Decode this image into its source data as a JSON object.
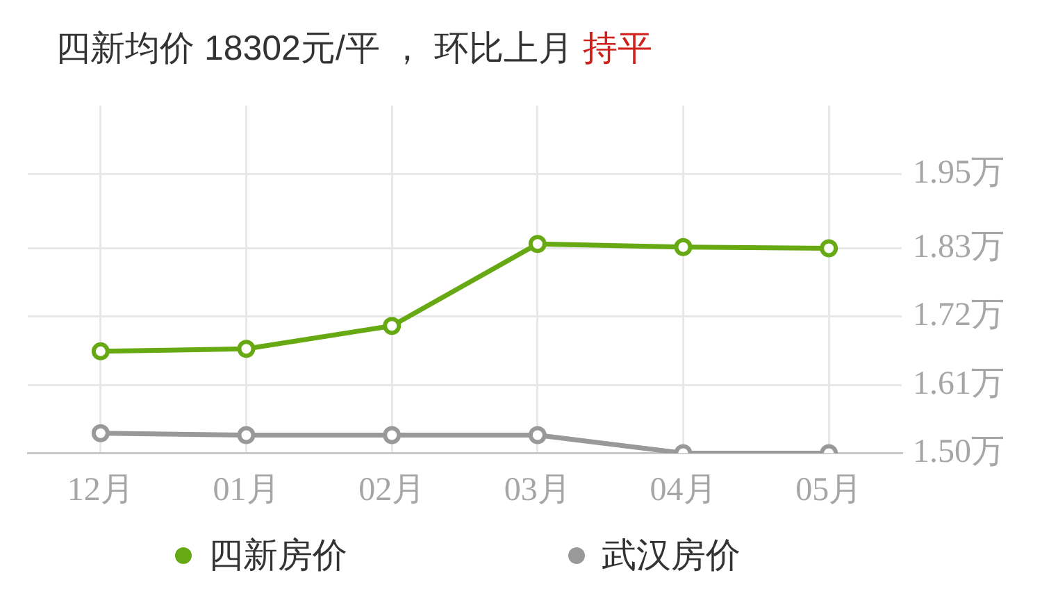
{
  "chart_data": {
    "type": "line",
    "title": "四新均价 18302元/平 ， 环比上月 持平",
    "categories": [
      "12月",
      "01月",
      "02月",
      "03月",
      "04月",
      "05月"
    ],
    "series": [
      {
        "name": "四新房价",
        "color": "#66a912",
        "values": [
          1.664,
          1.668,
          1.705,
          1.837,
          1.832,
          1.83
        ]
      },
      {
        "name": "武汉房价",
        "color": "#999999",
        "values": [
          1.532,
          1.529,
          1.529,
          1.529,
          1.5,
          1.5
        ]
      }
    ],
    "ylim": [
      1.5,
      2.06
    ],
    "yticks": [
      {
        "value": 1.5,
        "label": "1.50万"
      },
      {
        "value": 1.61,
        "label": "1.61万"
      },
      {
        "value": 1.72,
        "label": "1.72万"
      },
      {
        "value": 1.83,
        "label": "1.83万"
      },
      {
        "value": 1.95,
        "label": "1.95万"
      }
    ],
    "grid": true,
    "legend": "bottom",
    "marker": "circle",
    "line_style": "solid"
  }
}
